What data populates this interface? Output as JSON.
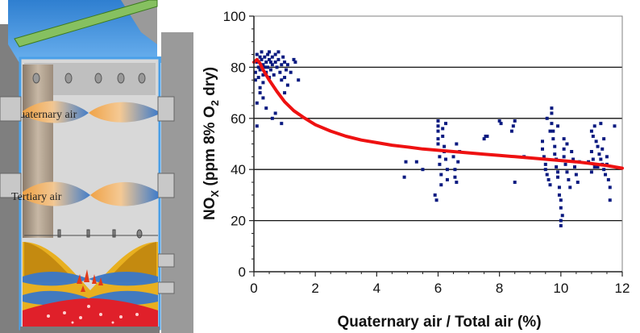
{
  "illustration": {
    "labels": {
      "quaternary": "Quaternary air",
      "tertiary": "Tertiary air"
    }
  },
  "chart_data": {
    "type": "scatter",
    "title": "",
    "xlabel": "Quaternary air / Total air (%)",
    "ylabel": {
      "main": "NO",
      "sub": "X",
      "rest": " (ppm 8% O",
      "sub2": "2",
      "end": " dry)"
    },
    "xlim": [
      0,
      12
    ],
    "ylim": [
      0,
      100
    ],
    "xticks": [
      0,
      2,
      4,
      6,
      8,
      10,
      12
    ],
    "yticks": [
      0,
      20,
      40,
      60,
      80,
      100
    ],
    "grid_y": [
      20,
      40,
      60,
      80
    ],
    "point_color": "#0a1a80",
    "curve_color": "#ee1111",
    "series": [
      {
        "kind": "points",
        "points": [
          [
            0.05,
            75
          ],
          [
            0.05,
            78
          ],
          [
            0.1,
            82
          ],
          [
            0.1,
            85
          ],
          [
            0.1,
            66
          ],
          [
            0.1,
            57
          ],
          [
            0.15,
            80
          ],
          [
            0.15,
            76
          ],
          [
            0.2,
            84
          ],
          [
            0.2,
            79
          ],
          [
            0.2,
            72
          ],
          [
            0.25,
            83
          ],
          [
            0.25,
            86
          ],
          [
            0.3,
            81
          ],
          [
            0.3,
            77
          ],
          [
            0.3,
            74
          ],
          [
            0.35,
            84
          ],
          [
            0.35,
            80
          ],
          [
            0.4,
            82
          ],
          [
            0.4,
            78
          ],
          [
            0.45,
            85
          ],
          [
            0.45,
            80
          ],
          [
            0.5,
            83
          ],
          [
            0.5,
            86
          ],
          [
            0.5,
            76
          ],
          [
            0.55,
            79
          ],
          [
            0.55,
            82
          ],
          [
            0.6,
            84
          ],
          [
            0.6,
            81
          ],
          [
            0.65,
            77
          ],
          [
            0.7,
            85
          ],
          [
            0.7,
            82
          ],
          [
            0.75,
            80
          ],
          [
            0.8,
            86
          ],
          [
            0.8,
            83
          ],
          [
            0.85,
            78
          ],
          [
            0.9,
            81
          ],
          [
            0.9,
            75
          ],
          [
            0.95,
            84
          ],
          [
            1.0,
            82
          ],
          [
            1.0,
            76
          ],
          [
            1.05,
            79
          ],
          [
            1.1,
            73
          ],
          [
            1.1,
            81
          ],
          [
            1.2,
            78
          ],
          [
            1.3,
            83
          ],
          [
            1.35,
            82
          ],
          [
            1.45,
            75
          ],
          [
            0.6,
            60
          ],
          [
            0.7,
            62
          ],
          [
            0.9,
            58
          ],
          [
            0.4,
            64
          ],
          [
            1.0,
            70
          ],
          [
            0.2,
            70
          ],
          [
            0.3,
            68
          ],
          [
            4.9,
            37
          ],
          [
            4.95,
            43
          ],
          [
            5.3,
            43
          ],
          [
            5.5,
            40
          ],
          [
            5.9,
            30
          ],
          [
            5.95,
            28
          ],
          [
            6.0,
            59
          ],
          [
            6.0,
            57
          ],
          [
            6.0,
            55
          ],
          [
            6.0,
            52
          ],
          [
            6.0,
            50
          ],
          [
            6.05,
            45
          ],
          [
            6.05,
            42
          ],
          [
            6.1,
            38
          ],
          [
            6.1,
            34
          ],
          [
            6.15,
            56
          ],
          [
            6.15,
            53
          ],
          [
            6.2,
            49
          ],
          [
            6.2,
            47
          ],
          [
            6.25,
            58
          ],
          [
            6.25,
            44
          ],
          [
            6.3,
            40
          ],
          [
            6.3,
            36
          ],
          [
            6.5,
            45
          ],
          [
            6.55,
            40
          ],
          [
            6.55,
            37
          ],
          [
            6.6,
            50
          ],
          [
            6.6,
            35
          ],
          [
            6.65,
            43
          ],
          [
            6.7,
            47
          ],
          [
            7.5,
            52
          ],
          [
            7.55,
            53
          ],
          [
            7.6,
            53
          ],
          [
            8.0,
            59
          ],
          [
            8.05,
            58
          ],
          [
            8.4,
            55
          ],
          [
            8.45,
            57
          ],
          [
            8.5,
            59
          ],
          [
            8.8,
            45
          ],
          [
            8.5,
            35
          ],
          [
            9.4,
            51
          ],
          [
            9.4,
            48
          ],
          [
            9.45,
            45
          ],
          [
            9.5,
            42
          ],
          [
            9.5,
            40
          ],
          [
            9.55,
            38
          ],
          [
            9.6,
            36
          ],
          [
            9.65,
            34
          ],
          [
            9.7,
            62
          ],
          [
            9.7,
            58
          ],
          [
            9.75,
            55
          ],
          [
            9.75,
            52
          ],
          [
            9.8,
            49
          ],
          [
            9.8,
            46
          ],
          [
            9.85,
            44
          ],
          [
            9.85,
            41
          ],
          [
            9.9,
            39
          ],
          [
            9.9,
            37
          ],
          [
            9.95,
            33
          ],
          [
            9.95,
            30
          ],
          [
            10.0,
            28
          ],
          [
            10.0,
            25
          ],
          [
            10.05,
            22
          ],
          [
            10.0,
            18
          ],
          [
            10.0,
            20
          ],
          [
            10.1,
            48
          ],
          [
            10.1,
            45
          ],
          [
            10.15,
            42
          ],
          [
            10.2,
            50
          ],
          [
            10.2,
            39
          ],
          [
            10.25,
            36
          ],
          [
            10.3,
            33
          ],
          [
            10.35,
            47
          ],
          [
            10.4,
            44
          ],
          [
            10.45,
            41
          ],
          [
            10.5,
            38
          ],
          [
            10.55,
            35
          ],
          [
            10.6,
            43
          ],
          [
            9.7,
            64
          ],
          [
            9.65,
            55
          ],
          [
            9.55,
            60
          ],
          [
            9.9,
            57
          ],
          [
            10.1,
            52
          ],
          [
            11.0,
            55
          ],
          [
            11.05,
            53
          ],
          [
            11.1,
            57
          ],
          [
            11.15,
            51
          ],
          [
            11.2,
            49
          ],
          [
            11.25,
            46
          ],
          [
            11.3,
            44
          ],
          [
            11.35,
            42
          ],
          [
            11.4,
            40
          ],
          [
            11.45,
            38
          ],
          [
            11.5,
            45
          ],
          [
            11.5,
            42
          ],
          [
            11.55,
            36
          ],
          [
            11.6,
            33
          ],
          [
            11.6,
            28
          ],
          [
            11.0,
            47
          ],
          [
            11.05,
            44
          ],
          [
            11.1,
            41
          ],
          [
            11.75,
            57
          ],
          [
            11.3,
            58
          ],
          [
            11.4,
            52
          ],
          [
            10.9,
            43
          ],
          [
            11.0,
            39
          ],
          [
            11.2,
            41
          ],
          [
            11.35,
            48
          ]
        ]
      },
      {
        "kind": "trend",
        "points": [
          [
            0.0,
            82
          ],
          [
            0.1,
            83
          ],
          [
            0.2,
            81.5
          ],
          [
            0.3,
            79
          ],
          [
            0.5,
            75
          ],
          [
            0.75,
            70.5
          ],
          [
            1.0,
            66.5
          ],
          [
            1.3,
            63
          ],
          [
            1.6,
            60.5
          ],
          [
            2.0,
            57.5
          ],
          [
            2.5,
            55
          ],
          [
            3.0,
            53
          ],
          [
            3.5,
            51.5
          ],
          [
            4.0,
            50.5
          ],
          [
            4.5,
            49.5
          ],
          [
            5.0,
            48.8
          ],
          [
            5.5,
            48
          ],
          [
            6.0,
            47.5
          ],
          [
            6.5,
            47
          ],
          [
            7.0,
            46.5
          ],
          [
            7.5,
            46
          ],
          [
            8.0,
            45.5
          ],
          [
            8.5,
            45
          ],
          [
            9.0,
            44.5
          ],
          [
            9.5,
            44
          ],
          [
            10.0,
            43.5
          ],
          [
            10.5,
            43
          ],
          [
            11.0,
            42.3
          ],
          [
            11.5,
            41.5
          ],
          [
            12.0,
            40.5
          ]
        ]
      }
    ]
  }
}
